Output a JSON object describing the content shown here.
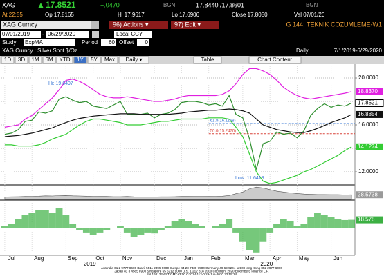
{
  "header": {
    "ticker": "XAG",
    "last": "17.8521",
    "change": "+.0470",
    "bid_src": "BGN",
    "quote": "17.8440 /17.8601",
    "ask_src": "BGN",
    "time": "At 22:55",
    "open": "Op 17.8165",
    "high": "Hi 17.9617",
    "low": "Lo 17.6906",
    "close": "Close 17.8050",
    "val": "Val 07/01/20"
  },
  "toolbar": {
    "security": "XAG Curncy",
    "actions": "96) Actions ▾",
    "edit": "97) Edit ▾",
    "page": "G 144: TEKNIK COZUMLEME-W1"
  },
  "dates": {
    "start": "07/01/2019",
    "sep": "-",
    "end": "06/29/2020",
    "ccy": "Local CCY"
  },
  "study": {
    "study_label": "Study",
    "study": "ExpMA",
    "period_label": "Period",
    "period": "60",
    "offset_label": "Offset",
    "offset": "0"
  },
  "chart_header": {
    "title": "XAG Curncy : Silver Spot $/Oz",
    "freq": "Daily",
    "range": "7/1/2019-6/29/2020"
  },
  "buttons": [
    "1D",
    "3D",
    "1M",
    "6M",
    "YTD",
    "1Y",
    "5Y",
    "Max",
    "Daily ▾"
  ],
  "active_button_index": 5,
  "table": "Table",
  "chart_content": "Chart Content",
  "chart_data": {
    "type": "line",
    "grid": true,
    "categories": [
      "Jul",
      null,
      null,
      null,
      "Aug",
      null,
      null,
      null,
      null,
      "Sep",
      null,
      null,
      null,
      "Oct",
      null,
      null,
      null,
      "Nov",
      null,
      null,
      null,
      null,
      "Dec",
      null,
      null,
      null,
      "Jan",
      null,
      null,
      null,
      "Feb",
      null,
      null,
      null,
      null,
      "Mar",
      null,
      null,
      null,
      "Apr",
      null,
      null,
      null,
      "May",
      null,
      null,
      null,
      null,
      "Jun",
      null,
      null,
      null
    ],
    "x_groups": [
      "2019",
      "2020"
    ],
    "panels": {
      "main": {
        "ylim": [
          11,
          21
        ],
        "yticks": [
          {
            "value": 12,
            "label": "12.0000"
          },
          {
            "value": 14,
            "label": "14.0000"
          },
          {
            "value": 16,
            "label": "16.0000"
          },
          {
            "value": 18,
            "label": "18.0000"
          },
          {
            "value": 20,
            "label": "20.0000"
          }
        ]
      },
      "vol": {
        "ylim": [
          0,
          80
        ]
      },
      "osc": {
        "ylim": [
          -60,
          60
        ]
      }
    },
    "series": [
      {
        "panel": "main",
        "color": "#2f8f2f",
        "values": [
          15.2,
          15.3,
          15.6,
          16.3,
          16.4,
          17.1,
          17.0,
          17.2,
          18.2,
          18.4,
          18.1,
          17.9,
          18.0,
          17.6,
          17.5,
          17.4,
          17.7,
          18.0,
          16.9,
          16.9,
          16.9,
          17.0,
          16.6,
          16.9,
          17.0,
          17.3,
          17.9,
          18.0,
          18.0,
          17.9,
          17.7,
          17.8,
          17.6,
          18.5,
          16.9,
          16.6,
          14.8,
          12.2,
          14.4,
          14.6,
          15.4,
          15.2,
          15.3,
          14.9,
          15.5,
          16.8,
          17.4,
          17.8,
          17.5,
          17.7,
          17.6,
          17.8521
        ]
      },
      {
        "panel": "main",
        "color": "#e020e0",
        "values": [
          15.8,
          15.9,
          16.0,
          16.5,
          16.8,
          17.3,
          17.8,
          18.3,
          19.0,
          19.8,
          19.9,
          19.7,
          19.4,
          19.0,
          18.6,
          18.4,
          18.3,
          18.3,
          18.4,
          18.3,
          18.2,
          18.1,
          18.0,
          18.0,
          18.1,
          18.2,
          18.4,
          18.5,
          18.5,
          18.5,
          18.5,
          18.5,
          18.6,
          18.9,
          19.5,
          20.3,
          20.8,
          20.8,
          20.6,
          20.3,
          19.8,
          19.2,
          18.8,
          18.5,
          18.3,
          18.2,
          18.3,
          18.4,
          18.5,
          18.6,
          18.7,
          18.837
        ],
        "value_labels": [
          null,
          null,
          null,
          null,
          null,
          null,
          null,
          null,
          null,
          null,
          null,
          null,
          null,
          null,
          null,
          null,
          null,
          null,
          null,
          null,
          null,
          null,
          null,
          null,
          null,
          null,
          null,
          null,
          null,
          null,
          null,
          null,
          null,
          null,
          null,
          null,
          null,
          null,
          null,
          null,
          null,
          null,
          null,
          null,
          null,
          null,
          null,
          null,
          null,
          null,
          null,
          "18.8370"
        ]
      },
      {
        "panel": "main",
        "color": "#111111",
        "values": [
          15.0,
          15.05,
          15.1,
          15.2,
          15.3,
          15.45,
          15.6,
          15.75,
          16.0,
          16.2,
          16.4,
          16.55,
          16.65,
          16.75,
          16.8,
          16.85,
          16.9,
          16.95,
          16.95,
          16.95,
          16.9,
          16.9,
          16.9,
          16.9,
          16.9,
          16.95,
          17.0,
          17.1,
          17.15,
          17.2,
          17.25,
          17.25,
          17.3,
          17.35,
          17.3,
          17.2,
          17.0,
          16.5,
          16.0,
          15.8,
          15.6,
          15.5,
          15.4,
          15.35,
          15.35,
          15.5,
          15.7,
          15.95,
          16.2,
          16.4,
          16.6,
          16.8854
        ]
      },
      {
        "panel": "main",
        "color": "#33cc33",
        "values": [
          14.3,
          14.3,
          14.2,
          14.2,
          14.2,
          14.3,
          14.5,
          14.8,
          15.0,
          15.2,
          15.6,
          16.0,
          16.3,
          16.5,
          16.5,
          16.4,
          16.3,
          16.2,
          16.0,
          16.0,
          16.0,
          16.1,
          16.2,
          16.3,
          16.3,
          16.4,
          16.5,
          16.5,
          16.5,
          16.5,
          16.6,
          16.6,
          16.6,
          16.5,
          15.8,
          15.0,
          13.5,
          12.0,
          11.2,
          11.0,
          11.1,
          11.3,
          11.5,
          11.7,
          12.0,
          12.2,
          12.5,
          12.8,
          13.1,
          13.4,
          13.8,
          14.1274
        ]
      },
      {
        "panel": "vol",
        "color": "#9a9a9a",
        "values": [
          15,
          16,
          17,
          18,
          19,
          20,
          22,
          21,
          23,
          24,
          22,
          21,
          20,
          19,
          18,
          18,
          17,
          17,
          18,
          16,
          15,
          15,
          15,
          16,
          16,
          17,
          18,
          18,
          19,
          19,
          18,
          19,
          20,
          24,
          35,
          45,
          65,
          75,
          70,
          60,
          50,
          45,
          40,
          36,
          33,
          31,
          30,
          30,
          29,
          29,
          28,
          28.5738
        ]
      },
      {
        "panel": "osc",
        "color": "#3cb043",
        "values": [
          5,
          10,
          20,
          30,
          35,
          40,
          40,
          35,
          45,
          30,
          10,
          -5,
          -10,
          -15,
          -10,
          -5,
          0,
          5,
          -10,
          -20,
          -15,
          -10,
          -12,
          -5,
          5,
          15,
          20,
          15,
          10,
          5,
          0,
          5,
          10,
          20,
          -10,
          -30,
          -50,
          -55,
          -30,
          -10,
          10,
          20,
          15,
          5,
          10,
          25,
          35,
          30,
          25,
          20,
          18,
          18.578
        ]
      }
    ],
    "levels": [
      {
        "label": "61.8(16.1168)",
        "value": 16.1168,
        "color": "#3a78d6"
      },
      {
        "label": "50.0(15.2470)",
        "value": 15.247,
        "color": "#d9443a"
      }
    ],
    "annotations": [
      "Hi: 19.6497",
      "Low: 11.6418"
    ]
  },
  "footer": [
    "Australia 61 2 9777 8600 Brazil 5511 2395 9000 Europe 44 20 7330 7500 Germany 49 69 9204 1210 Hong Kong 852 2977 6000",
    "Japan 81 3 4565 8900 Singapore 65 6212 1000 U.S. 1 212 318 2000 Copyright 2020 Bloomberg Finance L.P.",
    "SN 168122 AST GMT+3:00 G701-5112-0 29-Jun-2020 22:55:24"
  ]
}
